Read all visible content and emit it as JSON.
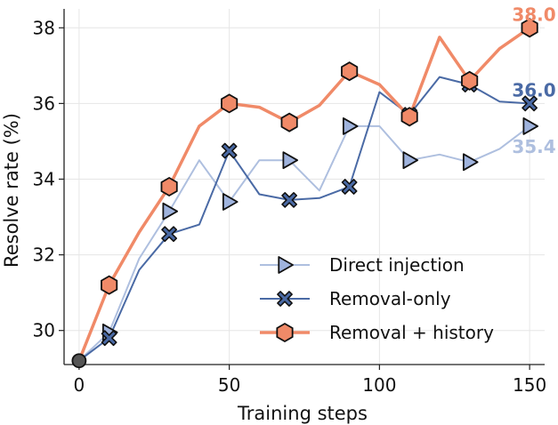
{
  "chart_data": {
    "type": "line",
    "title": "",
    "xlabel": "Training steps",
    "ylabel": "Resolve rate (%)",
    "xlim": [
      -5,
      155
    ],
    "ylim": [
      29.1,
      38.5
    ],
    "xticks": [
      "0",
      "50",
      "100",
      "150"
    ],
    "xtick_values": [
      0,
      50,
      100,
      150
    ],
    "yticks": [
      "30",
      "32",
      "34",
      "36",
      "38"
    ],
    "ytick_values": [
      30,
      32,
      34,
      36,
      38
    ],
    "grid": true,
    "legend_position": "lower-right",
    "start_point": {
      "x": 0,
      "y": 29.2,
      "color": "#555555"
    },
    "series": [
      {
        "name": "Direct injection",
        "color": "#aebfdf",
        "marker": "triangle-right",
        "marker_fill": "#9fb3dd",
        "line_width": 2,
        "x": [
          0,
          10,
          20,
          30,
          40,
          50,
          60,
          70,
          80,
          90,
          100,
          110,
          120,
          130,
          140,
          150
        ],
        "y": [
          29.2,
          29.95,
          31.9,
          33.15,
          34.5,
          33.4,
          34.5,
          34.5,
          33.7,
          35.4,
          35.4,
          34.5,
          34.65,
          34.45,
          34.8,
          35.4
        ],
        "marker_x": [
          10,
          30,
          50,
          70,
          90,
          110,
          130,
          150
        ],
        "end_label": "35.4"
      },
      {
        "name": "Removal-only",
        "color": "#4a6aa5",
        "marker": "x",
        "marker_fill": "#4a6aa5",
        "line_width": 2,
        "x": [
          0,
          10,
          20,
          30,
          40,
          50,
          60,
          70,
          80,
          90,
          100,
          110,
          120,
          130,
          140,
          150
        ],
        "y": [
          29.2,
          29.8,
          31.6,
          32.55,
          32.8,
          34.75,
          33.6,
          33.45,
          33.5,
          33.8,
          36.3,
          35.7,
          36.7,
          36.5,
          36.05,
          36.0
        ],
        "marker_x": [
          10,
          30,
          50,
          70,
          90,
          110,
          130,
          150
        ],
        "end_label": "36.0"
      },
      {
        "name": "Removal + history",
        "color": "#f08a68",
        "marker": "hexagon",
        "marker_fill": "#f08a68",
        "line_width": 3.5,
        "x": [
          0,
          10,
          20,
          30,
          40,
          50,
          60,
          70,
          80,
          90,
          100,
          110,
          120,
          130,
          140,
          150
        ],
        "y": [
          29.2,
          31.2,
          32.6,
          33.8,
          35.4,
          36.0,
          35.9,
          35.5,
          35.95,
          36.85,
          36.5,
          35.65,
          37.75,
          36.6,
          37.45,
          38.0
        ],
        "marker_x": [
          10,
          30,
          50,
          70,
          90,
          110,
          130,
          150
        ],
        "end_label": "38.0"
      }
    ]
  }
}
